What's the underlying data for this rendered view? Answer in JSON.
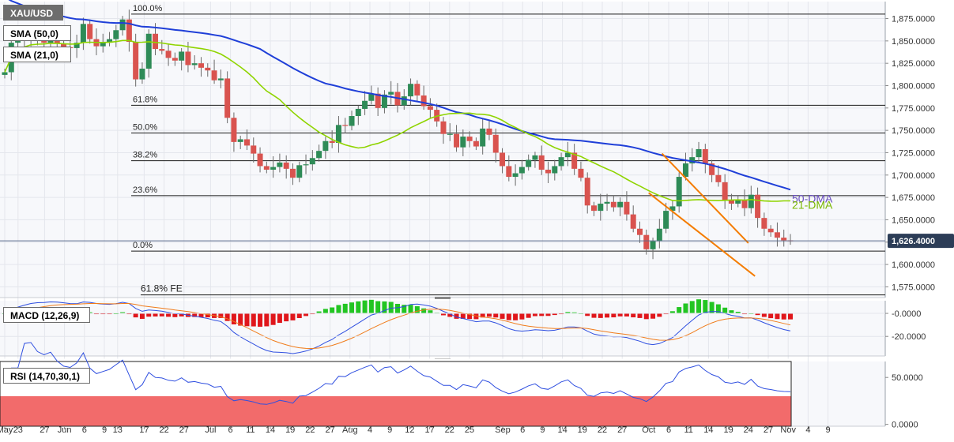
{
  "chart_data": {
    "type": "candlestick",
    "symbol": "XAU/USD",
    "indicators": {
      "sma50_label": "SMA (50,0)",
      "sma21_label": "SMA (21,0)",
      "macd_label": "MACD (12,26,9)",
      "rsi_label": "RSI (14,70,30,1)"
    },
    "last_price": "1,626.4000",
    "price_axis": {
      "ylim": [
        1563,
        1894
      ],
      "ticks": [
        1575,
        1600,
        1625,
        1650,
        1675,
        1700,
        1725,
        1750,
        1775,
        1800,
        1825,
        1850,
        1875
      ],
      "tick_labels": [
        "1,575.0000",
        "1,600.0000",
        "1,625.0000",
        "1,650.0000",
        "1,675.0000",
        "1,700.0000",
        "1,725.0000",
        "1,750.0000",
        "1,775.0000",
        "1,800.0000",
        "1,825.0000",
        "1,850.0000",
        "1,875.0000"
      ]
    },
    "fibonacci": [
      {
        "label": "100.0%",
        "price": 1880
      },
      {
        "label": "61.8%",
        "price": 1778
      },
      {
        "label": "50.0%",
        "price": 1747
      },
      {
        "label": "38.2%",
        "price": 1716
      },
      {
        "label": "23.6%",
        "price": 1677
      },
      {
        "label": "0.0%",
        "price": 1615
      },
      {
        "label": "61.8% FE",
        "price": 1566
      }
    ],
    "annotations": {
      "dma50": "50-DMA",
      "dma21": "21-DMA"
    },
    "channel": {
      "upper": [
        [
          "2022-10-05",
          1724
        ],
        [
          "2022-10-24",
          1624
        ]
      ],
      "lower": [
        [
          "2022-10-03",
          1680
        ],
        [
          "2022-10-25",
          1587
        ]
      ]
    },
    "x_axis": {
      "labels": [
        "May",
        "23",
        "27",
        "Jun",
        "6",
        "9",
        "13",
        "17",
        "22",
        "27",
        "Jul",
        "6",
        "11",
        "14",
        "19",
        "22",
        "27",
        "Aug",
        "4",
        "9",
        "12",
        "17",
        "22",
        "25",
        "Sep",
        "6",
        "9",
        "14",
        "19",
        "22",
        "27",
        "Oct",
        "6",
        "11",
        "14",
        "19",
        "24",
        "27",
        "Nov",
        "4",
        "9"
      ],
      "label_dates": [
        "2022-05-19",
        "2022-05-23",
        "2022-05-27",
        "2022-06-01",
        "2022-06-06",
        "2022-06-09",
        "2022-06-13",
        "2022-06-17",
        "2022-06-22",
        "2022-06-27",
        "2022-07-01",
        "2022-07-06",
        "2022-07-11",
        "2022-07-14",
        "2022-07-19",
        "2022-07-22",
        "2022-07-27",
        "2022-08-01",
        "2022-08-04",
        "2022-08-09",
        "2022-08-12",
        "2022-08-17",
        "2022-08-22",
        "2022-08-25",
        "2022-09-01",
        "2022-09-06",
        "2022-09-09",
        "2022-09-14",
        "2022-09-19",
        "2022-09-22",
        "2022-09-27",
        "2022-10-03",
        "2022-10-06",
        "2022-10-11",
        "2022-10-14",
        "2022-10-19",
        "2022-10-24",
        "2022-10-27",
        "2022-11-01",
        "2022-11-04",
        "2022-11-09"
      ]
    },
    "closes": [
      1815,
      1848,
      1858,
      1852,
      1855,
      1850,
      1848,
      1853,
      1847,
      1843,
      1842,
      1848,
      1869,
      1852,
      1844,
      1848,
      1852,
      1862,
      1874,
      1849,
      1807,
      1819,
      1858,
      1841,
      1839,
      1831,
      1828,
      1838,
      1823,
      1825,
      1820,
      1817,
      1806,
      1808,
      1764,
      1737,
      1740,
      1733,
      1724,
      1710,
      1706,
      1709,
      1714,
      1707,
      1697,
      1711,
      1712,
      1719,
      1727,
      1738,
      1736,
      1756,
      1755,
      1766,
      1774,
      1783,
      1791,
      1775,
      1790,
      1793,
      1778,
      1788,
      1802,
      1789,
      1777,
      1773,
      1760,
      1746,
      1746,
      1731,
      1743,
      1738,
      1732,
      1752,
      1745,
      1725,
      1710,
      1698,
      1702,
      1709,
      1717,
      1722,
      1706,
      1702,
      1710,
      1720,
      1725,
      1707,
      1697,
      1666,
      1660,
      1668,
      1670,
      1664,
      1670,
      1656,
      1640,
      1633,
      1617,
      1626,
      1640,
      1660,
      1665,
      1698,
      1713,
      1720,
      1729,
      1713,
      1700,
      1692,
      1672,
      1668,
      1672,
      1663,
      1678,
      1652,
      1640,
      1636,
      1630,
      1627,
      1626
    ],
    "opens": [
      1812,
      1815,
      1848,
      1858,
      1852,
      1855,
      1850,
      1848,
      1853,
      1847,
      1843,
      1842,
      1848,
      1869,
      1852,
      1844,
      1848,
      1852,
      1862,
      1874,
      1849,
      1807,
      1819,
      1858,
      1841,
      1839,
      1831,
      1828,
      1838,
      1823,
      1825,
      1820,
      1817,
      1806,
      1808,
      1764,
      1737,
      1740,
      1733,
      1724,
      1710,
      1706,
      1709,
      1714,
      1707,
      1697,
      1711,
      1712,
      1719,
      1727,
      1738,
      1736,
      1756,
      1755,
      1766,
      1774,
      1783,
      1791,
      1775,
      1790,
      1793,
      1778,
      1788,
      1802,
      1789,
      1777,
      1773,
      1760,
      1746,
      1746,
      1731,
      1743,
      1738,
      1732,
      1752,
      1745,
      1725,
      1710,
      1698,
      1702,
      1709,
      1717,
      1722,
      1706,
      1702,
      1710,
      1720,
      1725,
      1707,
      1697,
      1666,
      1660,
      1668,
      1670,
      1664,
      1670,
      1656,
      1640,
      1633,
      1617,
      1626,
      1640,
      1660,
      1665,
      1698,
      1713,
      1720,
      1729,
      1713,
      1700,
      1692,
      1672,
      1668,
      1672,
      1663,
      1678,
      1652,
      1640,
      1636,
      1630,
      1627
    ],
    "macd_axis": {
      "ylim": [
        -37,
        11
      ],
      "ticks": [
        0,
        -20
      ],
      "tick_labels": [
        "-0.0000",
        "-20.0000"
      ]
    },
    "rsi_axis": {
      "ylim": [
        -2,
        67
      ],
      "overbought": 70,
      "oversold": 30,
      "ticks": [
        0,
        50
      ],
      "tick_labels": [
        "0.0000",
        "50.0000"
      ]
    }
  }
}
